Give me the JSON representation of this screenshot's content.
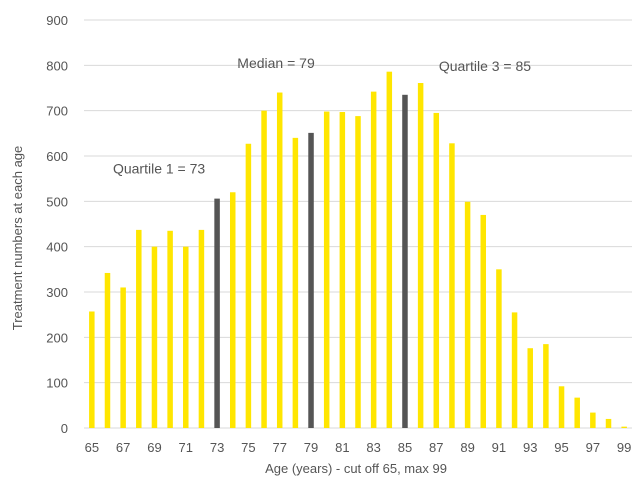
{
  "chart_data": {
    "type": "bar",
    "title": "",
    "xlabel": "Age (years) - cut off 65, max 99",
    "ylabel": "Treatment numbers at each age",
    "ylim": [
      0,
      900
    ],
    "yticks": [
      0,
      100,
      200,
      300,
      400,
      500,
      600,
      700,
      800,
      900
    ],
    "grid": true,
    "categories": [
      65,
      66,
      67,
      68,
      69,
      70,
      71,
      72,
      73,
      74,
      75,
      76,
      77,
      78,
      79,
      80,
      81,
      82,
      83,
      84,
      85,
      86,
      87,
      88,
      89,
      90,
      91,
      92,
      93,
      94,
      95,
      96,
      97,
      98,
      99
    ],
    "values": [
      257,
      342,
      310,
      437,
      400,
      435,
      400,
      437,
      506,
      520,
      627,
      700,
      740,
      640,
      651,
      698,
      697,
      688,
      742,
      786,
      735,
      761,
      695,
      628,
      499,
      470,
      350,
      255,
      176,
      185,
      92,
      67,
      34,
      20,
      3
    ],
    "x_tick_labels": [
      "65",
      "67",
      "69",
      "71",
      "73",
      "75",
      "77",
      "79",
      "81",
      "83",
      "85",
      "87",
      "89",
      "91",
      "93",
      "95",
      "97",
      "99"
    ],
    "bar_color": "#ffe600",
    "highlight_color": "#555555",
    "highlighted_categories": [
      73,
      79,
      85
    ],
    "annotations": [
      {
        "text": "Quartile 1 = 73",
        "category": 73
      },
      {
        "text": "Median = 79",
        "category": 79
      },
      {
        "text": "Quartile 3 = 85",
        "category": 85
      }
    ]
  }
}
